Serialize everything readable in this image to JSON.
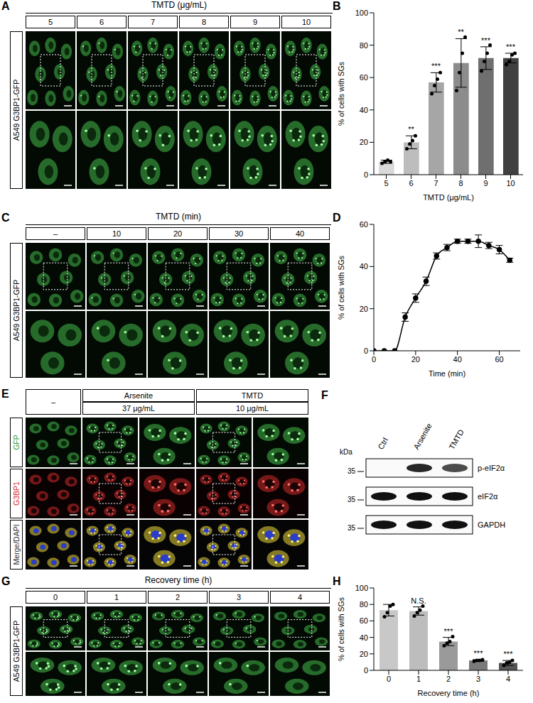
{
  "chart_data": [
    {
      "panel_label": "B",
      "type": "bar",
      "categories": [
        "5",
        "6",
        "7",
        "8",
        "9",
        "10"
      ],
      "values": [
        8,
        20,
        57,
        69,
        72,
        72
      ],
      "errors": [
        1,
        4,
        6,
        15,
        7,
        3
      ],
      "points": [
        [
          7,
          8,
          9,
          8
        ],
        [
          16,
          19,
          21,
          24
        ],
        [
          50,
          55,
          59,
          63
        ],
        [
          52,
          63,
          75,
          85
        ],
        [
          64,
          70,
          75,
          80
        ],
        [
          68,
          70,
          74,
          75
        ]
      ],
      "significance": [
        null,
        "**",
        "***",
        "**",
        "***",
        "***"
      ],
      "colors": [
        "#d9d9d9",
        "#bdbdbd",
        "#a6a6a6",
        "#8c8c8c",
        "#6f6f6f",
        "#404040"
      ],
      "x_label": "TMTD (μg/mL)",
      "y_label": "% of cells with SGs",
      "ylim": [
        0,
        100
      ],
      "yticks": [
        0,
        20,
        40,
        60,
        80,
        100
      ]
    },
    {
      "panel_label": "D",
      "type": "line",
      "x": [
        0,
        5,
        10,
        15,
        20,
        25,
        30,
        35,
        40,
        45,
        50,
        55,
        60,
        65
      ],
      "values": [
        0,
        0,
        0,
        16,
        25,
        33,
        45,
        49,
        52,
        52,
        52,
        50,
        48,
        43
      ],
      "errors": [
        0,
        0,
        0,
        2,
        2,
        2,
        1.5,
        1.5,
        1,
        1,
        3,
        1.5,
        2,
        1
      ],
      "color": "#000000",
      "marker": "circle",
      "line_style": "solid",
      "x_label": "Time (min)",
      "y_label": "% of cells with SGs",
      "xlim": [
        0,
        70
      ],
      "xticks": [
        0,
        20,
        40,
        60
      ],
      "ylim": [
        0,
        60
      ],
      "yticks": [
        0,
        20,
        40,
        60
      ]
    },
    {
      "panel_label": "H",
      "type": "bar",
      "categories": [
        "0",
        "1",
        "2",
        "3",
        "4"
      ],
      "values": [
        73,
        72,
        35,
        12,
        9
      ],
      "errors": [
        7,
        5,
        5,
        1,
        3
      ],
      "points": [
        [
          65,
          70,
          78,
          80
        ],
        [
          66,
          70,
          73,
          78
        ],
        [
          30,
          33,
          35,
          41
        ],
        [
          11,
          12,
          12,
          13
        ],
        [
          6,
          9,
          10,
          12
        ]
      ],
      "significance": [
        null,
        "N.S.",
        "***",
        "***",
        "***"
      ],
      "colors": [
        "#c8c8c8",
        "#bdbdbd",
        "#9a9a9a",
        "#7a7a7a",
        "#555555"
      ],
      "x_label": "Recovery time (h)",
      "y_label": "% of cells with SGs",
      "ylim": [
        0,
        100
      ],
      "yticks": [
        0,
        20,
        40,
        60,
        80,
        100
      ]
    }
  ],
  "image_panels": [
    {
      "panel_label": "A",
      "header": "TMTD (μg/mL)",
      "columns": [
        "5",
        "6",
        "7",
        "8",
        "9",
        "10"
      ],
      "row_label": "A549 G3BP1-GFP"
    },
    {
      "panel_label": "C",
      "header": "TMTD (min)",
      "columns": [
        "–",
        "10",
        "20",
        "30",
        "40"
      ],
      "row_label": "A549 G3BP1-GFP"
    },
    {
      "panel_label": "G",
      "header": "Recovery time (h)",
      "columns": [
        "0",
        "1",
        "2",
        "3",
        "4"
      ],
      "row_label": "A549 G3BP1-GFP"
    }
  ],
  "merge_panel": {
    "panel_label": "E",
    "first_column": "–",
    "column_groups": [
      {
        "label": "Arsenite",
        "sub": "37 μg/mL"
      },
      {
        "label": "TMTD",
        "sub": "10 μg/mL"
      }
    ],
    "rows": [
      "GFP",
      "G3BP1",
      "Merge/DAPI"
    ]
  },
  "blot": {
    "panel_label": "F",
    "unit": "kDa",
    "lanes": [
      "Ctrl",
      "Arsenite",
      "TMTD"
    ],
    "rows": [
      {
        "label": "p-eIF2α",
        "mw_marker": 35,
        "intensity": [
          0,
          0.9,
          0.75
        ]
      },
      {
        "label": "eIF2α",
        "mw_marker": 35,
        "intensity": [
          1,
          1,
          1
        ]
      },
      {
        "label": "GAPDH",
        "mw_marker": 35,
        "intensity": [
          1,
          1,
          1
        ]
      }
    ]
  }
}
